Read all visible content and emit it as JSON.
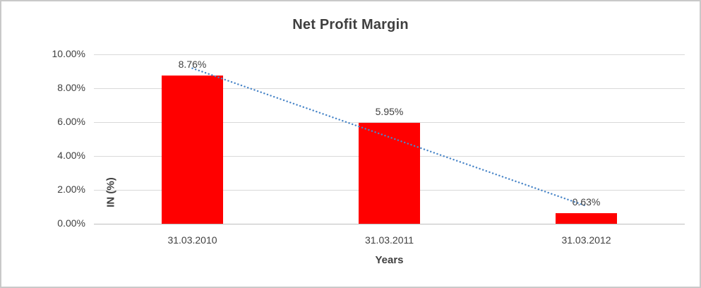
{
  "window": {
    "background": "#ffffff",
    "border_color": "#c9c9c9"
  },
  "chart_data": {
    "type": "bar",
    "title": "Net Profit Margin",
    "xlabel": "Years",
    "ylabel": "IN (%)",
    "categories": [
      "31.03.2010",
      "31.03.2011",
      "31.03.2012"
    ],
    "values": [
      8.76,
      5.95,
      0.63
    ],
    "data_labels": [
      "8.76%",
      "5.95%",
      "0.63%"
    ],
    "ylim": [
      0,
      10
    ],
    "ytick_values": [
      0,
      2,
      4,
      6,
      8,
      10
    ],
    "ytick_labels": [
      "0.00%",
      "2.00%",
      "4.00%",
      "6.00%",
      "8.00%",
      "10.00%"
    ],
    "grid": true,
    "legend": "none",
    "bar_color": "#ff0000",
    "gridline_color": "#d9d9d9",
    "axis_line_color": "#bfbfbf",
    "text_color": "#404040",
    "trendline": {
      "type": "linear",
      "style": "dotted",
      "color": "#4a86c8",
      "values_at_first_last_category": [
        9.18,
        1.05
      ]
    }
  }
}
